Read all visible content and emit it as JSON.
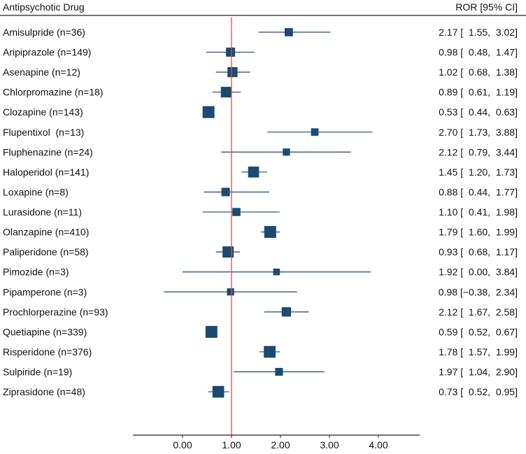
{
  "chart_data": {
    "type": "forest",
    "column_headers": {
      "left": "Antipsychotic Drug",
      "right": "ROR [95% CI]"
    },
    "reference_value": 1.0,
    "xlim": [
      -1.0,
      4.8
    ],
    "xticks": [
      0,
      1,
      2,
      3,
      4
    ],
    "xtick_labels": [
      "0.00",
      "1.00",
      "2.00",
      "3.00",
      "4.00"
    ],
    "colors": {
      "marker": "#1c4a72",
      "ci": "#1c4a72",
      "reference": "#d9534f",
      "axis": "#222222"
    },
    "rows": [
      {
        "label": "Amisulpride (n=36)",
        "est": 2.17,
        "lo": 1.55,
        "hi": 3.02,
        "text": "2.17 [  1.55,  3.02]"
      },
      {
        "label": "Aripiprazole (n=149)",
        "est": 0.98,
        "lo": 0.48,
        "hi": 1.47,
        "text": "0.98 [  0.48,  1.47]"
      },
      {
        "label": "Asenapine (n=12)",
        "est": 1.02,
        "lo": 0.68,
        "hi": 1.38,
        "text": "1.02 [  0.68,  1.38]"
      },
      {
        "label": "Chlorpromazine (n=18)",
        "est": 0.89,
        "lo": 0.61,
        "hi": 1.19,
        "text": "0.89 [  0.61,  1.19]"
      },
      {
        "label": "Clozapine (n=143)",
        "est": 0.53,
        "lo": 0.44,
        "hi": 0.63,
        "text": "0.53 [  0.44,  0.63]"
      },
      {
        "label": "Flupentixol  (n=13)",
        "est": 2.7,
        "lo": 1.73,
        "hi": 3.88,
        "text": "2.70 [  1.73,  3.88]"
      },
      {
        "label": "Fluphenazine (n=24)",
        "est": 2.12,
        "lo": 0.79,
        "hi": 3.44,
        "text": "2.12 [  0.79,  3.44]"
      },
      {
        "label": "Haloperidol (n=141)",
        "est": 1.45,
        "lo": 1.2,
        "hi": 1.73,
        "text": "1.45 [  1.20,  1.73]"
      },
      {
        "label": "Loxapine (n=8)",
        "est": 0.88,
        "lo": 0.44,
        "hi": 1.77,
        "text": "0.88 [  0.44,  1.77]"
      },
      {
        "label": "Lurasidone (n=11)",
        "est": 1.1,
        "lo": 0.41,
        "hi": 1.98,
        "text": "1.10 [  0.41,  1.98]"
      },
      {
        "label": "Olanzapine (n=410)",
        "est": 1.79,
        "lo": 1.6,
        "hi": 1.99,
        "text": "1.79 [  1.60,  1.99]"
      },
      {
        "label": "Paliperidone (n=58)",
        "est": 0.93,
        "lo": 0.68,
        "hi": 1.17,
        "text": "0.93 [  0.68,  1.17]"
      },
      {
        "label": "Pimozide (n=3)",
        "est": 1.92,
        "lo": 0.0,
        "hi": 3.84,
        "text": "1.92 [  0.00,  3.84]"
      },
      {
        "label": "Pipamperone (n=3)",
        "est": 0.98,
        "lo": -0.38,
        "hi": 2.34,
        "text": "0.98 [−0.38,  2.34]"
      },
      {
        "label": "Prochlorperazine (n=93)",
        "est": 2.12,
        "lo": 1.67,
        "hi": 2.58,
        "text": "2.12 [  1.67,  2.58]"
      },
      {
        "label": "Quetiapine (n=339)",
        "est": 0.59,
        "lo": 0.52,
        "hi": 0.67,
        "text": "0.59 [  0.52,  0.67]"
      },
      {
        "label": "Risperidone (n=376)",
        "est": 1.78,
        "lo": 1.57,
        "hi": 1.99,
        "text": "1.78 [  1.57,  1.99]"
      },
      {
        "label": "Sulpiride (n=19)",
        "est": 1.97,
        "lo": 1.04,
        "hi": 2.9,
        "text": "1.97 [  1.04,  2.90]"
      },
      {
        "label": "Ziprasidone (n=48)",
        "est": 0.73,
        "lo": 0.52,
        "hi": 0.95,
        "text": "0.73 [  0.52,  0.95]"
      }
    ]
  }
}
